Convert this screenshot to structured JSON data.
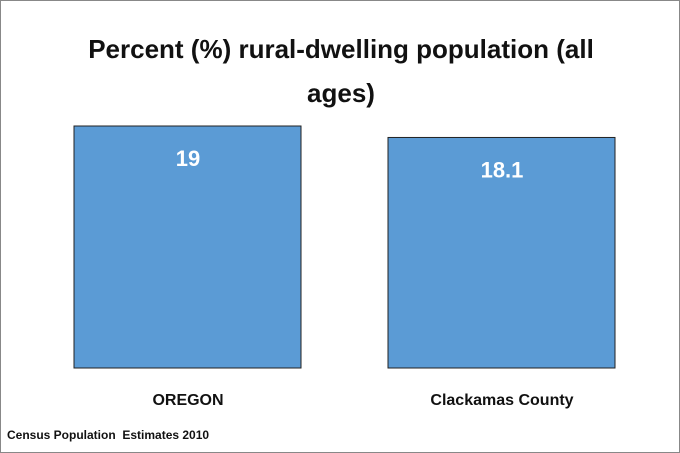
{
  "chart_data": {
    "type": "bar",
    "title": "Percent (%) rural-dwelling population (all ages)",
    "categories": [
      "OREGON",
      "Clackamas County"
    ],
    "values": [
      19,
      18.1
    ],
    "color": "#5b9bd5",
    "source": "Census Population  Estimates 2010"
  }
}
